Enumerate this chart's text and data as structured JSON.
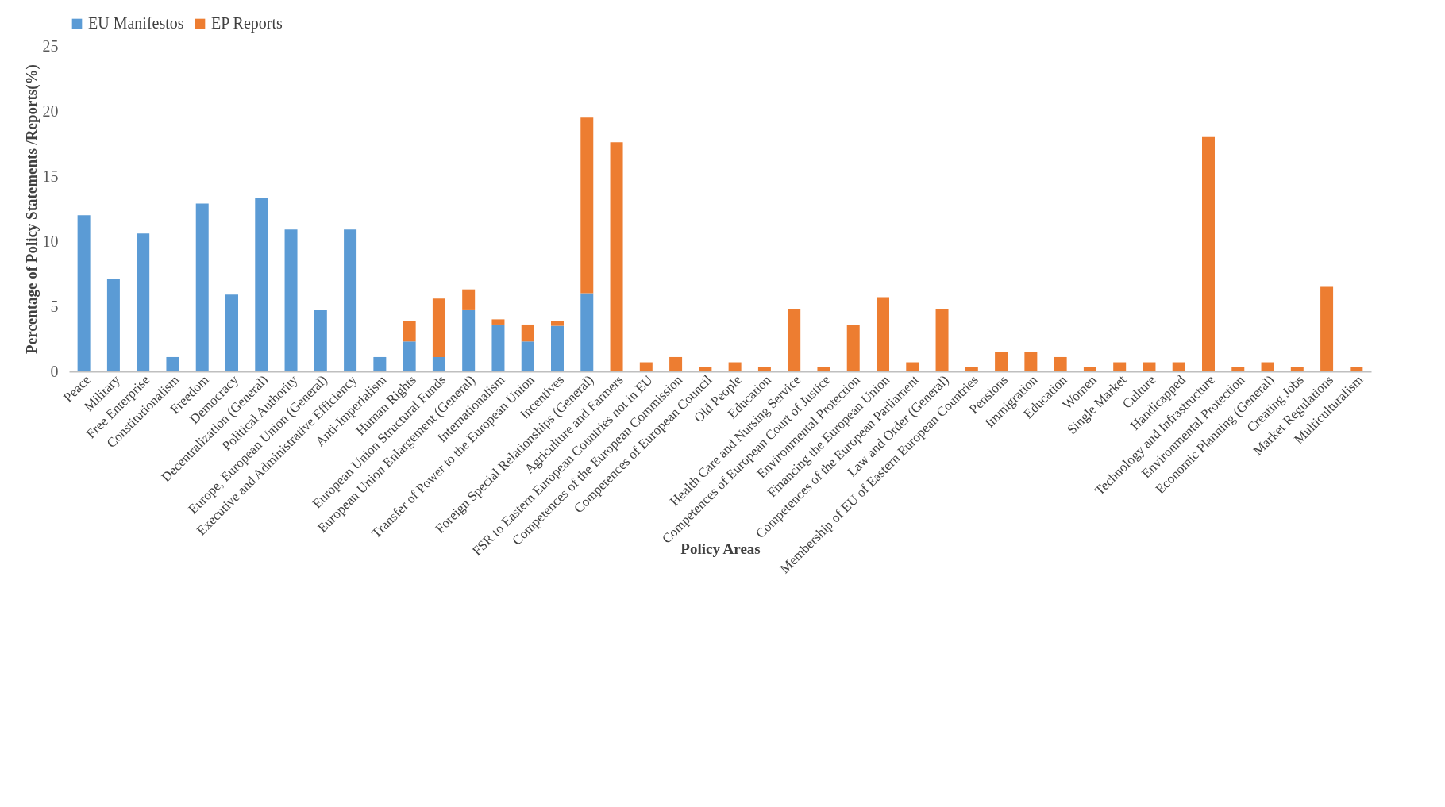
{
  "chart_data": {
    "type": "bar",
    "stacked": true,
    "xlabel": "Policy Areas",
    "ylabel": "Percentage of Policy Statements /Reports(%)",
    "categories": [
      "Peace",
      "Military",
      "Free Enterprise",
      "Constitutionalism",
      "Freedom",
      "Democracy",
      "Decentralization (General)",
      "Political Authority",
      "Europe, European Union (General)",
      "Executive and Administrative Efficiency",
      "Anti-Imperialism",
      "Human Rights",
      "European Union Structural Funds",
      "European Union Enlargement (General)",
      "Internationalism",
      "Transfer of Power to the European Union",
      "Incentives",
      "Foreign Special Relationships (General)",
      "Agriculture and Farmers",
      "FSR to Eastern European Countries not in EU",
      "Competences of the European Commission",
      "Competences of European Council",
      "Old People",
      "Education",
      "Health Care and Nursing Service",
      "Competences of European Court of Justice",
      "Environmental Protection",
      "Financing the European Union",
      "Competences of the European Parliament",
      "Law and Order (General)",
      "Membership of EU of Eastern European Countries",
      "Pensions",
      "Immigration",
      "Education",
      "Women",
      "Single Market",
      "Culture",
      "Handicapped",
      "Technology and Infrastructure",
      "Environmental Protection",
      "Economic Planning (General)",
      "Creating Jobs",
      "Market Regulations",
      "Multiculturalism"
    ],
    "series": [
      {
        "name": "EU Manifestos",
        "color": "#5b9bd5",
        "values": [
          12.0,
          7.1,
          10.6,
          1.1,
          12.9,
          5.9,
          13.3,
          10.9,
          4.7,
          10.9,
          1.1,
          2.3,
          1.1,
          4.7,
          3.6,
          2.3,
          3.5,
          6.0,
          null,
          null,
          null,
          null,
          null,
          null,
          null,
          null,
          null,
          null,
          null,
          null,
          null,
          null,
          null,
          null,
          null,
          null,
          null,
          null,
          null,
          null,
          null,
          null,
          null,
          null
        ]
      },
      {
        "name": "EP Reports",
        "color": "#ed7d31",
        "values": [
          null,
          null,
          null,
          null,
          null,
          null,
          null,
          null,
          null,
          null,
          null,
          1.6,
          4.5,
          1.6,
          0.4,
          1.3,
          0.4,
          13.5,
          17.6,
          0.7,
          1.1,
          0.35,
          0.7,
          0.35,
          4.8,
          0.35,
          3.6,
          5.7,
          0.7,
          4.8,
          0.35,
          1.5,
          1.5,
          1.1,
          0.35,
          0.7,
          0.7,
          0.7,
          18.0,
          0.35,
          0.7,
          0.35,
          6.5,
          0.35
        ]
      }
    ],
    "ylim": [
      0,
      25
    ],
    "yticks": [
      0,
      5,
      10,
      15,
      20,
      25
    ],
    "grid": false,
    "legend": "top"
  }
}
